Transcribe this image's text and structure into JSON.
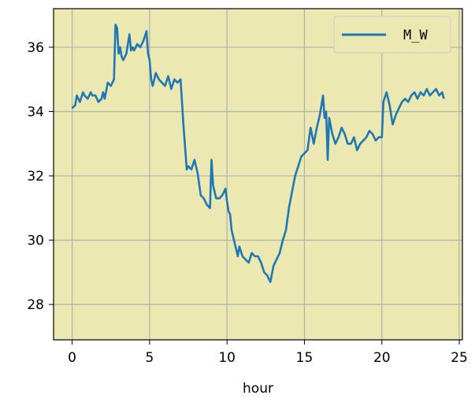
{
  "chart_data": {
    "type": "line",
    "xlabel": "hour",
    "ylabel": "",
    "xlim": [
      -1.2,
      25.2
    ],
    "ylim": [
      26.9,
      37.2
    ],
    "xticks": [
      0,
      5,
      10,
      15,
      20,
      25
    ],
    "yticks": [
      28,
      30,
      32,
      34,
      36
    ],
    "grid": true,
    "background": "#ebe8b1",
    "legend_position": "top-right",
    "series": [
      {
        "name": "M_W",
        "color": "#1f77b4",
        "x": [
          0.0,
          0.2,
          0.3,
          0.5,
          0.7,
          0.8,
          1.0,
          1.2,
          1.3,
          1.5,
          1.7,
          1.9,
          2.0,
          2.1,
          2.3,
          2.5,
          2.7,
          2.8,
          2.9,
          3.0,
          3.1,
          3.2,
          3.3,
          3.5,
          3.7,
          3.8,
          3.9,
          4.0,
          4.2,
          4.4,
          4.6,
          4.8,
          4.9,
          5.0,
          5.1,
          5.2,
          5.4,
          5.6,
          5.8,
          6.0,
          6.2,
          6.4,
          6.6,
          6.8,
          7.0,
          7.2,
          7.4,
          7.5,
          7.7,
          7.9,
          8.1,
          8.3,
          8.5,
          8.7,
          8.9,
          9.0,
          9.1,
          9.2,
          9.3,
          9.5,
          9.7,
          9.9,
          10.0,
          10.1,
          10.2,
          10.3,
          10.5,
          10.6,
          10.7,
          10.8,
          11.0,
          11.2,
          11.4,
          11.6,
          11.8,
          12.0,
          12.2,
          12.4,
          12.6,
          12.8,
          13.0,
          13.2,
          13.4,
          13.6,
          13.8,
          14.0,
          14.2,
          14.4,
          14.6,
          14.8,
          15.0,
          15.2,
          15.4,
          15.6,
          15.8,
          16.0,
          16.2,
          16.3,
          16.4,
          16.5,
          16.6,
          16.8,
          17.0,
          17.2,
          17.4,
          17.6,
          17.8,
          18.0,
          18.2,
          18.4,
          18.6,
          18.8,
          19.0,
          19.2,
          19.4,
          19.6,
          19.8,
          20.0,
          20.1,
          20.3,
          20.5,
          20.7,
          20.9,
          21.1,
          21.3,
          21.5,
          21.7,
          21.9,
          22.1,
          22.3,
          22.5,
          22.7,
          22.9,
          23.1,
          23.3,
          23.5,
          23.7,
          23.9,
          24.0
        ],
        "y": [
          34.1,
          34.2,
          34.5,
          34.3,
          34.6,
          34.5,
          34.4,
          34.6,
          34.5,
          34.5,
          34.3,
          34.4,
          34.6,
          34.4,
          34.9,
          34.8,
          35.0,
          36.7,
          36.6,
          35.8,
          36.0,
          35.7,
          35.6,
          35.8,
          36.4,
          35.9,
          36.0,
          35.9,
          36.1,
          36.0,
          36.2,
          36.5,
          35.8,
          35.6,
          35.0,
          34.8,
          35.2,
          35.0,
          34.9,
          34.8,
          35.1,
          34.7,
          35.0,
          34.9,
          35.0,
          33.5,
          32.2,
          32.3,
          32.2,
          32.5,
          32.1,
          31.4,
          31.3,
          31.1,
          31.0,
          32.5,
          31.7,
          31.5,
          31.3,
          31.3,
          31.4,
          31.6,
          31.2,
          30.9,
          30.8,
          30.3,
          29.9,
          29.7,
          29.5,
          29.8,
          29.5,
          29.4,
          29.3,
          29.6,
          29.5,
          29.5,
          29.3,
          29.0,
          28.9,
          28.7,
          29.2,
          29.4,
          29.6,
          30.0,
          30.3,
          31.0,
          31.5,
          32.0,
          32.3,
          32.6,
          32.7,
          32.8,
          33.5,
          33.0,
          33.5,
          33.9,
          34.5,
          33.8,
          34.0,
          32.5,
          33.8,
          33.3,
          33.0,
          33.2,
          33.5,
          33.3,
          33.0,
          33.0,
          33.2,
          32.8,
          33.0,
          33.1,
          33.2,
          33.4,
          33.3,
          33.1,
          33.2,
          33.2,
          34.3,
          34.6,
          34.2,
          33.6,
          33.9,
          34.1,
          34.3,
          34.4,
          34.3,
          34.5,
          34.6,
          34.4,
          34.6,
          34.5,
          34.7,
          34.5,
          34.6,
          34.7,
          34.5,
          34.6,
          34.4
        ]
      }
    ]
  }
}
